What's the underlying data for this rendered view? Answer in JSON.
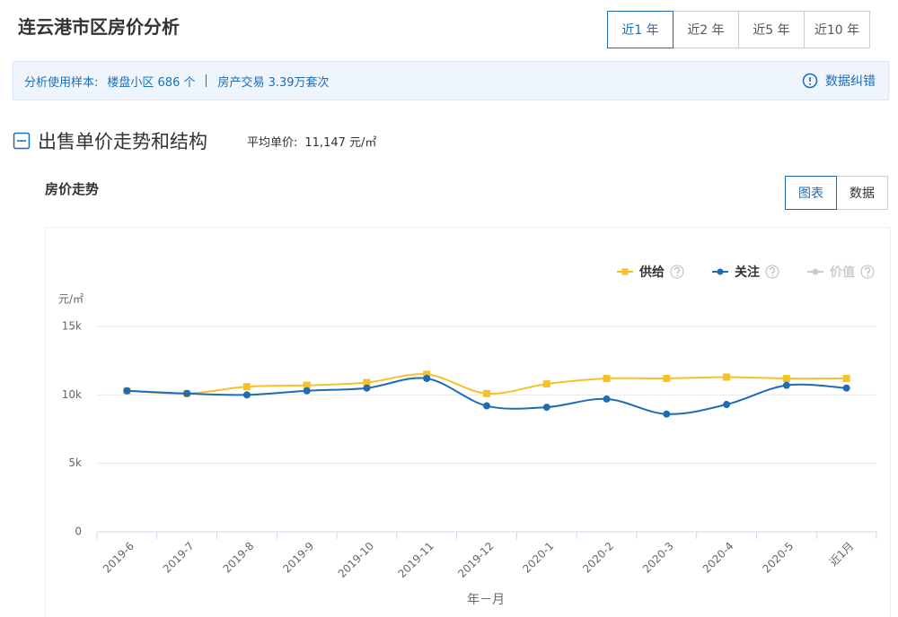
{
  "header": {
    "title": "连云港市区房价分析",
    "tabs": [
      "近1 年",
      "近2 年",
      "近5 年",
      "近10 年"
    ],
    "active_tab": 0
  },
  "sample_bar": {
    "label": "分析使用样本:",
    "items": [
      "楼盘小区 686 个",
      "房产交易 3.39万套次"
    ],
    "correction": "数据纠错"
  },
  "section": {
    "title": "出售单价走势和结构",
    "avg_label": "平均单价:",
    "avg_value": "11,147 元/㎡"
  },
  "chart_panel": {
    "title": "房价走势",
    "toggles": [
      "图表",
      "数据"
    ],
    "active_toggle": 0
  },
  "chart_data": {
    "type": "line",
    "y_unit": "元/㎡",
    "x_label": "年－月",
    "categories": [
      "2019-6",
      "2019-7",
      "2019-8",
      "2019-9",
      "2019-10",
      "2019-11",
      "2019-12",
      "2020-1",
      "2020-2",
      "2020-3",
      "2020-4",
      "2020-5",
      "近1月"
    ],
    "series": [
      {
        "name": "供给",
        "color": "#f5c02a",
        "marker": "square",
        "values": [
          10300,
          10100,
          10600,
          10700,
          10900,
          11500,
          10100,
          10800,
          11200,
          11200,
          11300,
          11200,
          11200
        ]
      },
      {
        "name": "关注",
        "color": "#1d6db5",
        "marker": "circle",
        "values": [
          10300,
          10100,
          10000,
          10300,
          10500,
          11200,
          9200,
          9100,
          9700,
          8600,
          9300,
          10700,
          10500
        ]
      },
      {
        "name": "价值",
        "color": "#cccccc",
        "marker": "circle",
        "visible": false,
        "values": [
          null,
          null,
          null,
          null,
          null,
          null,
          null,
          null,
          null,
          null,
          null,
          null,
          null
        ]
      }
    ],
    "ylim": [
      0,
      15000
    ],
    "yticks": [
      0,
      {
        "value": 5000,
        "label": "5k"
      },
      {
        "value": 10000,
        "label": "10k"
      },
      {
        "value": 15000,
        "label": "15k"
      }
    ],
    "grid": true,
    "legend": "top-right"
  }
}
